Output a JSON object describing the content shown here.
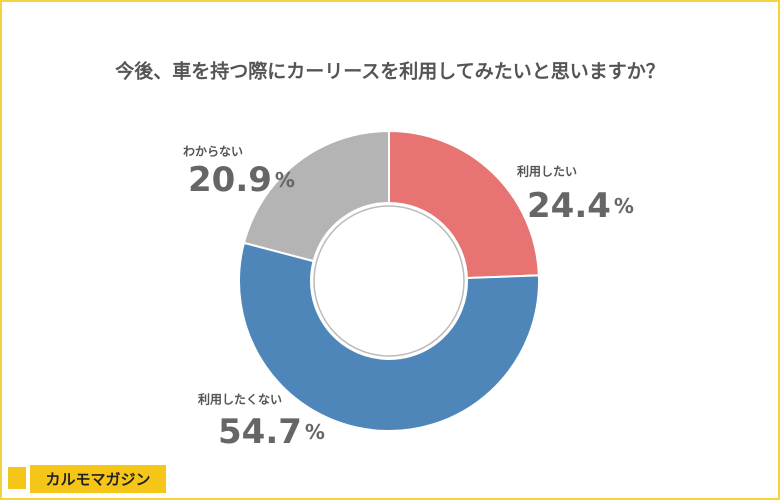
{
  "chart_data": {
    "type": "donut",
    "title": "今後、車を持つ際にカーリースを利用してみたいと思いますか？",
    "categories": [
      "利用したい",
      "利用したくない",
      "わからない"
    ],
    "values": [
      24.4,
      54.7,
      20.9
    ],
    "unit": "%",
    "colors": [
      "#e87373",
      "#4f86b9",
      "#b4b4b4"
    ]
  },
  "logo_text": "カルモマガジン"
}
